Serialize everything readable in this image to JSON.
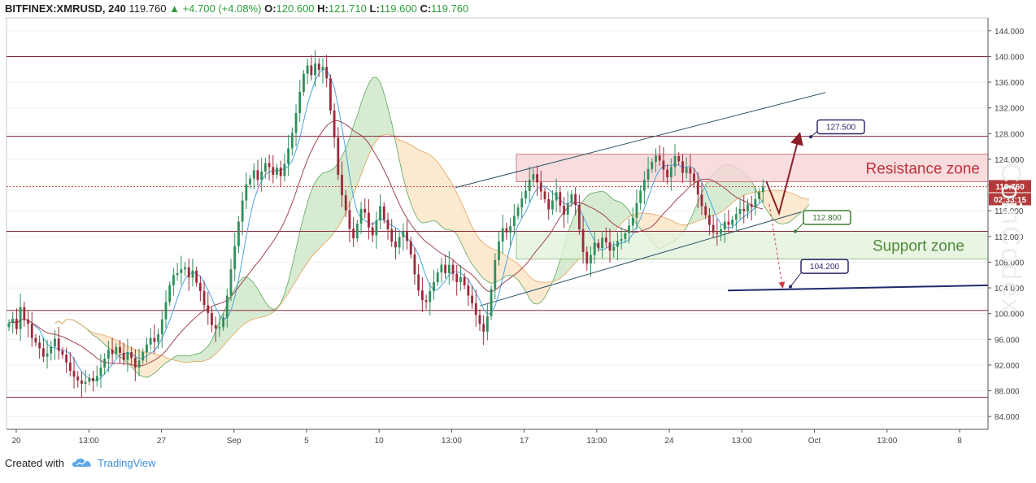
{
  "header": {
    "symbol": "BITFINEX:XMRUSD, 240",
    "last": "119.760",
    "change_arrow": "▲",
    "change": "+4.700 (+4.08%)",
    "o_label": "O:",
    "o_val": "120.600",
    "h_label": "H:",
    "h_val": "121.710",
    "l_label": "L:",
    "l_val": "119.600",
    "c_label": "C:",
    "c_val": "119.760"
  },
  "footer": {
    "created_with": "Created with",
    "brand": "TradingView",
    "brand_icon": "tradingview-cloud-icon"
  },
  "watermark": "CoinCodex",
  "colors": {
    "bull": "#2f8f5b",
    "bear": "#9c2a3a",
    "resistance_fill": "#f6d3d6",
    "support_fill": "#e3f2dc",
    "cloud_green": "#cfe8c9",
    "cloud_orange": "#fbe5c8",
    "accent_line": "#1f2a6b"
  },
  "chart_data": {
    "type": "candlestick",
    "symbol": "BITFINEX:XMRUSD",
    "interval": "240",
    "x_tick_labels": [
      "20",
      "13:00",
      "27",
      "Sep",
      "5",
      "10",
      "13:00",
      "17",
      "13:00",
      "24",
      "13:00",
      "Oct",
      "13:00",
      "8"
    ],
    "y_ticks": [
      84,
      88,
      92,
      96,
      100,
      104,
      108,
      112,
      116,
      120,
      124,
      128,
      132,
      136,
      140,
      144
    ],
    "y_tick_labels": [
      "84.000",
      "88.000",
      "92.000",
      "96.000",
      "100.000",
      "104.000",
      "108.000",
      "112.000",
      "116.000",
      "120.000",
      "124.000",
      "128.000",
      "132.000",
      "136.000",
      "140.000",
      "144.000"
    ],
    "ylim": [
      82,
      146
    ],
    "last_price": {
      "value": 119.76,
      "label": "119.760",
      "countdown": "02:33:15"
    },
    "horizontal_levels": [
      140.0,
      127.6,
      112.8,
      100.5,
      87.0
    ],
    "zones": [
      {
        "name": "Resistance zone",
        "low": 120.5,
        "high": 124.8,
        "kind": "resistance"
      },
      {
        "name": "Support zone",
        "low": 108.5,
        "high": 112.8,
        "kind": "support"
      }
    ],
    "targets": [
      {
        "label": "127.500",
        "value": 127.5
      },
      {
        "label": "112.800",
        "value": 112.8
      },
      {
        "label": "104.200",
        "value": 104.2
      }
    ],
    "candles_close": [
      98.5,
      99.2,
      97.6,
      101.0,
      99.1,
      98.4,
      96.2,
      95.5,
      94.6,
      93.3,
      93.8,
      94.9,
      96.1,
      94.2,
      93.6,
      92.4,
      91.1,
      90.2,
      89.6,
      89.1,
      89.4,
      90.0,
      89.5,
      90.3,
      91.6,
      93.0,
      94.4,
      93.7,
      94.8,
      93.9,
      92.8,
      94.0,
      93.1,
      91.6,
      92.7,
      94.0,
      95.2,
      96.2,
      95.6,
      96.8,
      99.1,
      101.8,
      104.4,
      106.0,
      106.3,
      106.9,
      107.2,
      105.6,
      106.7,
      104.8,
      103.5,
      101.3,
      100.1,
      98.2,
      97.7,
      97.9,
      99.4,
      102.8,
      106.9,
      110.5,
      114.3,
      117.6,
      120.1,
      121.0,
      122.3,
      120.8,
      122.1,
      123.4,
      122.8,
      121.6,
      122.7,
      121.4,
      123.3,
      125.7,
      128.1,
      131.2,
      134.5,
      137.3,
      138.6,
      137.1,
      138.9,
      137.9,
      138.4,
      136.6,
      131.6,
      127.4,
      121.6,
      118.4,
      116.1,
      113.2,
      111.7,
      114.0,
      116.3,
      115.7,
      113.4,
      112.2,
      114.5,
      116.7,
      114.6,
      113.1,
      111.2,
      110.3,
      111.9,
      112.7,
      111.3,
      109.2,
      106.1,
      103.6,
      102.1,
      101.8,
      103.5,
      104.9,
      106.4,
      107.6,
      106.3,
      107.6,
      106.2,
      104.9,
      105.7,
      104.4,
      102.8,
      101.6,
      99.8,
      98.4,
      97.2,
      99.6,
      103.8,
      108.3,
      111.2,
      113.3,
      112.6,
      113.6,
      115.2,
      116.5,
      117.9,
      119.1,
      120.8,
      121.7,
      120.4,
      119.0,
      117.8,
      116.2,
      117.6,
      118.9,
      116.8,
      115.4,
      117.2,
      118.6,
      116.9,
      113.1,
      109.6,
      107.8,
      109.1,
      111.0,
      110.2,
      111.8,
      111.1,
      109.8,
      110.4,
      111.3,
      111.6,
      112.5,
      113.7,
      114.9,
      117.2,
      119.1,
      120.8,
      122.5,
      123.6,
      124.6,
      123.8,
      122.4,
      121.2,
      122.8,
      124.5,
      123.7,
      121.9,
      122.7,
      121.8,
      120.6,
      118.5,
      116.7,
      115.3,
      113.8,
      112.6,
      112.4,
      113.1,
      114.3,
      113.8,
      114.6,
      115.5,
      116.3,
      115.9,
      117.0,
      116.6,
      117.8,
      118.9,
      119.76
    ],
    "annotations": [
      "Resistance zone",
      "Support zone"
    ]
  }
}
